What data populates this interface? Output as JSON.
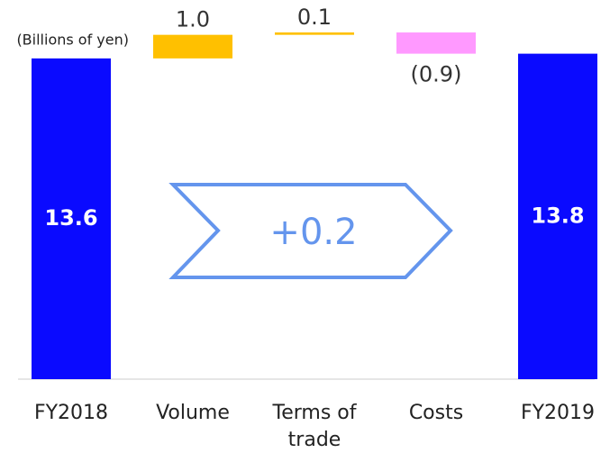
{
  "chart_data": {
    "type": "waterfall",
    "unit_label": "(Billions of yen)",
    "categories": [
      "FY2018",
      "Volume",
      "Terms of trade",
      "Costs",
      "FY2019"
    ],
    "values": [
      13.6,
      1.0,
      0.1,
      -0.9,
      13.8
    ],
    "value_labels": [
      "13.6",
      "1.0",
      "0.1",
      "(0.9)",
      "13.8"
    ],
    "total": [
      true,
      false,
      false,
      false,
      true
    ],
    "colors": [
      "#0a0aff",
      "#ffc000",
      "#ffc000",
      "#ff99ff",
      "#0a0aff"
    ],
    "ylim": [
      0,
      16
    ],
    "annotation": "+0.2"
  }
}
